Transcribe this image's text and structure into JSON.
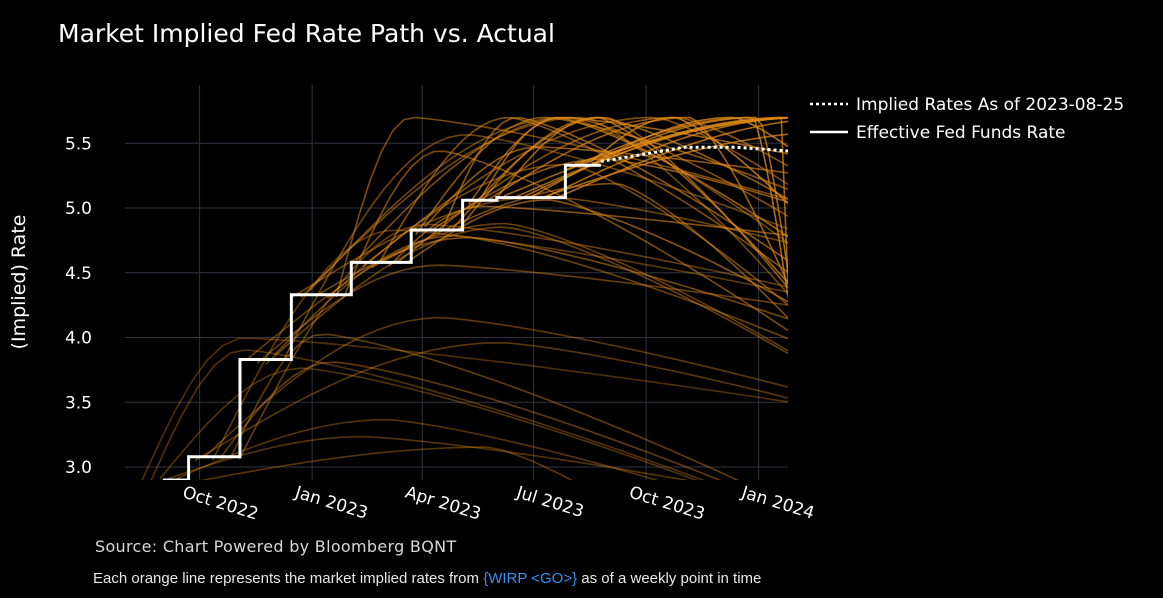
{
  "chart_data": {
    "type": "line",
    "title": "Market Implied Fed Rate Path vs. Actual",
    "ylabel": "(Implied) Rate",
    "xlabel": "",
    "ylim": [
      2.9,
      5.95
    ],
    "xlim": [
      "2022-08-01",
      "2024-01-25"
    ],
    "y_ticks": [
      3.0,
      3.5,
      4.0,
      4.5,
      5.0,
      5.5
    ],
    "y_tick_labels": [
      "3.0",
      "3.5",
      "4.0",
      "4.5",
      "5.0",
      "5.5"
    ],
    "x_ticks": [
      "2022-10-01",
      "2023-01-01",
      "2023-04-01",
      "2023-07-01",
      "2023-10-01",
      "2024-01-01"
    ],
    "x_tick_labels": [
      "Oct 2022",
      "Jan 2023",
      "Apr 2023",
      "Jul 2023",
      "Oct 2023",
      "Jan 2024"
    ],
    "grid": true,
    "legend_position": "top-right",
    "legend": [
      {
        "name": "Implied Rates As of 2023-08-25",
        "style": "dotted",
        "color": "#ffffff"
      },
      {
        "name": "Effective Fed Funds Rate",
        "style": "solid",
        "color": "#ffffff"
      }
    ],
    "series": [
      {
        "name": "Effective Fed Funds Rate",
        "type": "step",
        "color": "#ffffff",
        "x": [
          "2022-09-01",
          "2022-09-22",
          "2022-11-03",
          "2022-12-15",
          "2023-02-02",
          "2023-03-23",
          "2023-05-04",
          "2023-06-01",
          "2023-07-27",
          "2023-08-25"
        ],
        "y": [
          2.9,
          3.08,
          3.83,
          4.33,
          4.58,
          4.83,
          5.06,
          5.08,
          5.33,
          5.33
        ]
      },
      {
        "name": "Implied Rates As of 2023-08-25",
        "type": "dotted",
        "color": "#ffffff",
        "x": [
          "2023-08-25",
          "2023-09-20",
          "2023-11-01",
          "2023-12-13",
          "2024-01-25"
        ],
        "y": [
          5.36,
          5.4,
          5.47,
          5.47,
          5.44
        ]
      }
    ],
    "implied_paths_color": "#e08a18",
    "implied_paths_count": 52
  },
  "footer": {
    "source": "Source: Chart Powered by Bloomberg BQNT",
    "note_before": "Each orange line represents the market implied rates from ",
    "note_code": "{WIRP <GO>}",
    "note_after": " as of a weekly point in time"
  }
}
